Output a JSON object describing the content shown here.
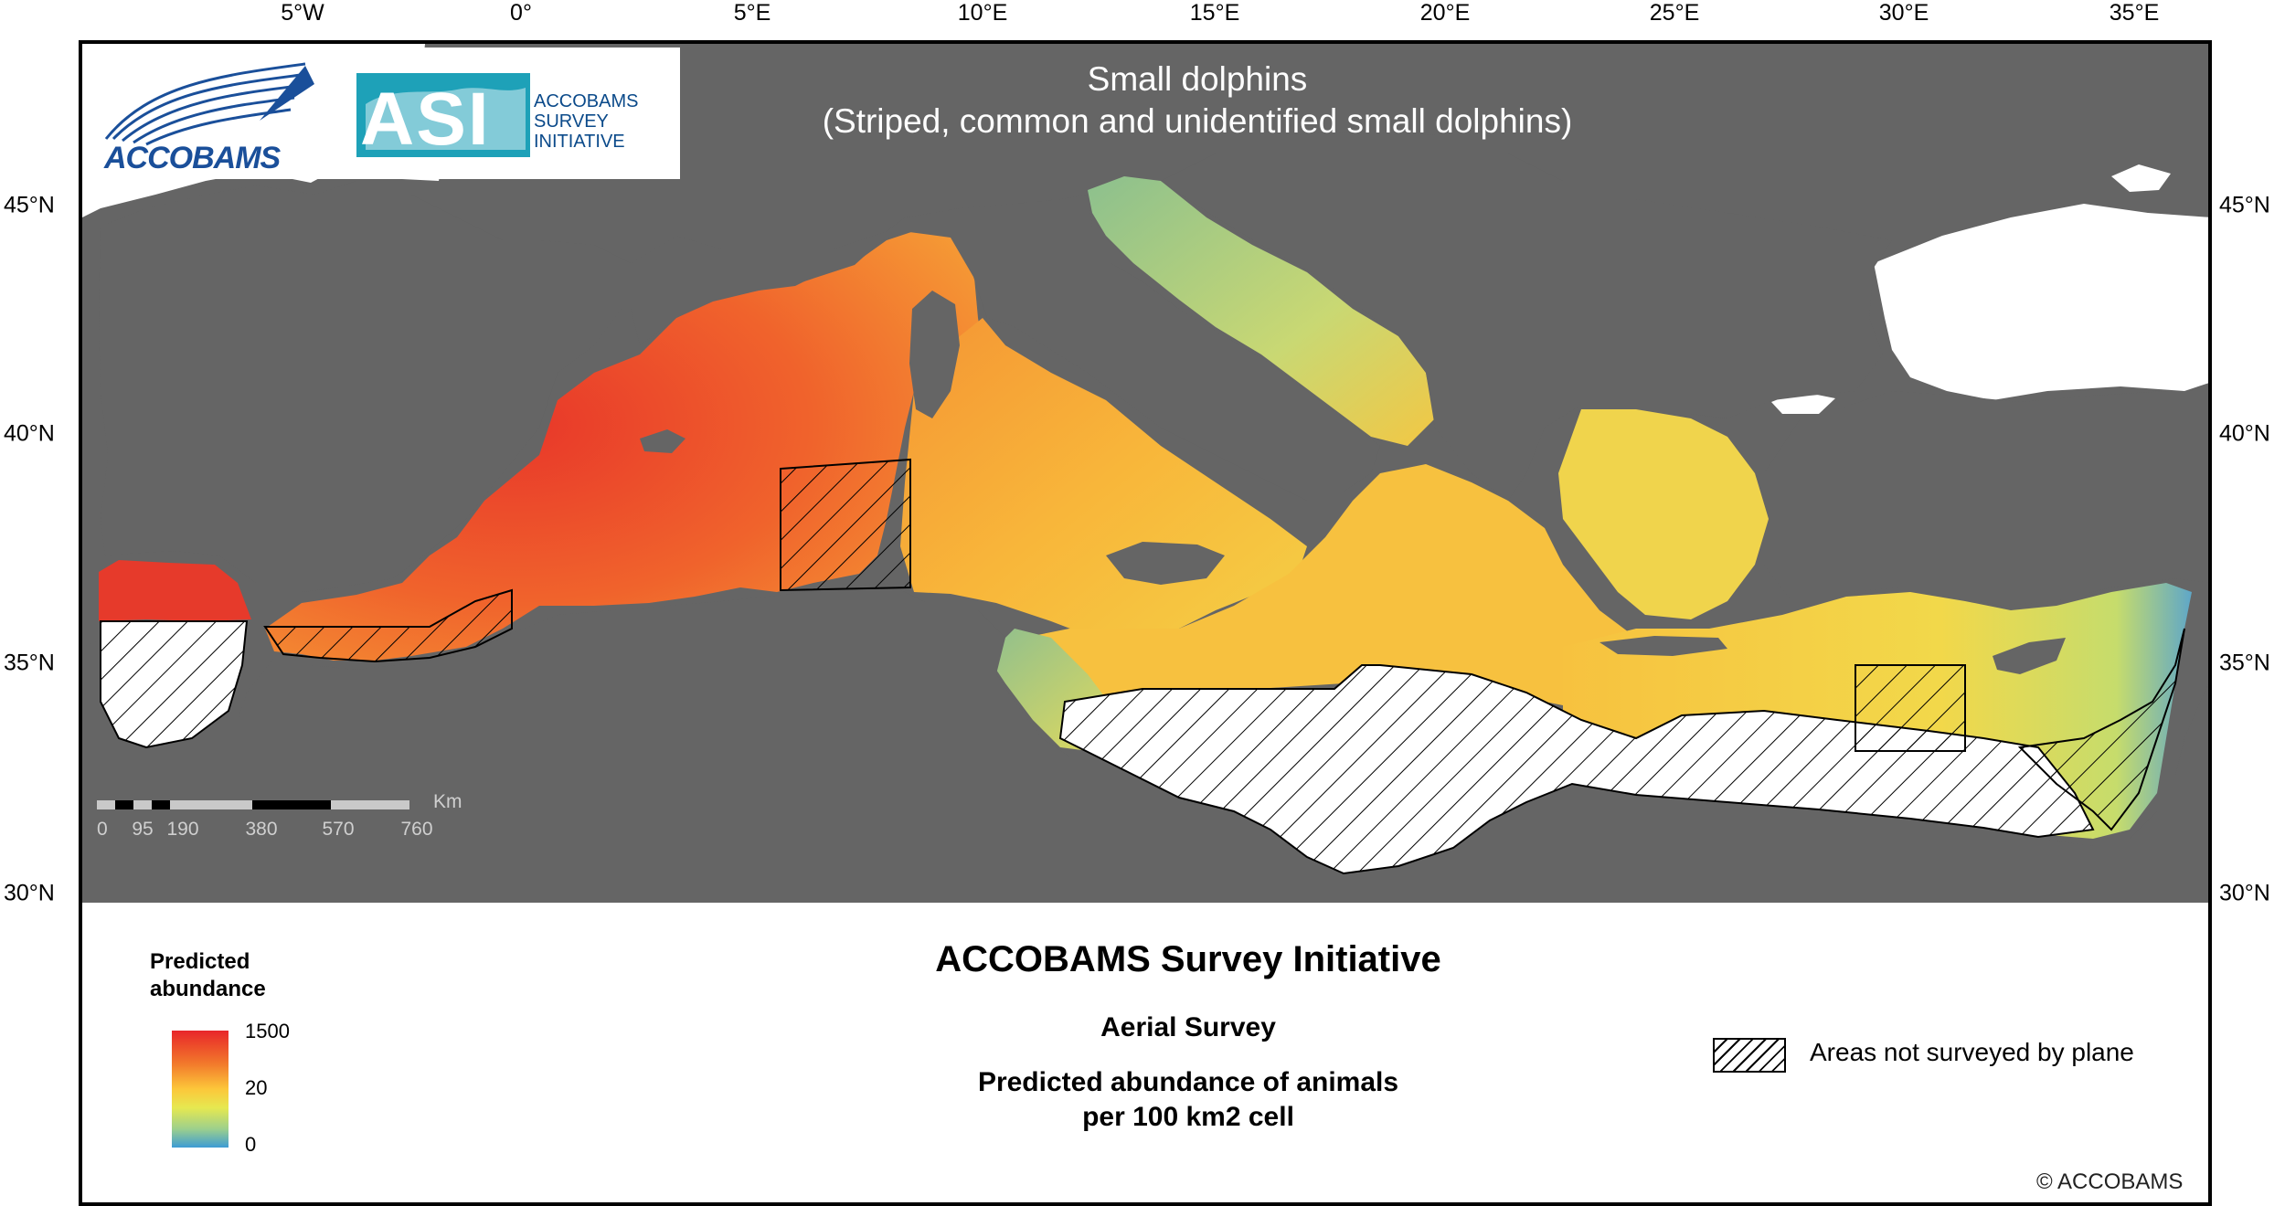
{
  "map": {
    "title_line1": "Small dolphins",
    "title_line2": "(Striped, common and unidentified small dolphins)",
    "longitude_labels": [
      "5°W",
      "0°",
      "5°E",
      "10°E",
      "15°E",
      "20°E",
      "25°E",
      "30°E",
      "35°E"
    ],
    "latitude_labels": [
      "45°N",
      "40°N",
      "35°N",
      "30°N"
    ],
    "colors": {
      "sea_background": "#656565",
      "high": "#e8262a",
      "mid": "#fcc73a",
      "low": "#3d9bd4",
      "non_surveyed_area": "#ffffff"
    }
  },
  "logos": {
    "accobams": "ACCOBAMS",
    "asi_initials": "ASI",
    "asi_line1": "ACCOBAMS",
    "asi_line2": "SURVEY",
    "asi_line3": "INITIATIVE"
  },
  "scale_bar": {
    "unit": "Km",
    "labels": [
      "0",
      "95",
      "190",
      "380",
      "570",
      "760"
    ]
  },
  "legend": {
    "heading_line1": "Predicted",
    "heading_line2": "abundance",
    "max_label": "1500",
    "mid_label": "20",
    "min_label": "0",
    "hatch_label": "Areas not surveyed by plane"
  },
  "footer": {
    "title": "ACCOBAMS Survey Initiative",
    "subtitle": "Aerial Survey",
    "description_line1": "Predicted abundance of animals",
    "description_line2": "per 100 km2 cell",
    "copyright": "© ACCOBAMS"
  }
}
